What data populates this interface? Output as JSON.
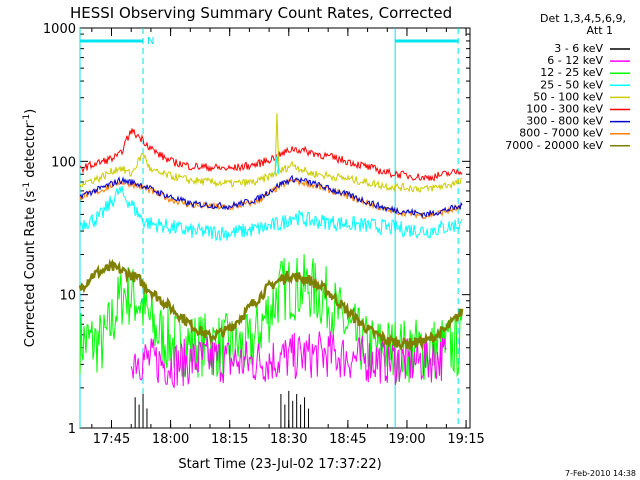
{
  "chart_data": {
    "type": "line",
    "title": "HESSI Observing Summary Count Rates, Corrected",
    "xlabel": "Start Time (23-Jul-02 17:37:22)",
    "ylabel_main": "Corrected Count Rate (s",
    "ylabel_sup1": "-1",
    "ylabel_mid": " detector",
    "ylabel_sup2": "-1",
    "ylabel_end": ")",
    "yscale": "log",
    "ylim": [
      1,
      1000
    ],
    "xlim_minutes": [
      17.62,
      19.27
    ],
    "x_ticks": [
      "17:45",
      "18:00",
      "18:15",
      "18:30",
      "18:45",
      "19:00",
      "19:15"
    ],
    "y_ticks": [
      "1",
      "10",
      "100",
      "1000"
    ],
    "legend_header": [
      "Det 1,3,4,5,6,9,",
      "Att 1"
    ],
    "footer_date": "7-Feb-2010 14:38",
    "marker_N": "N",
    "night_bars": [
      {
        "start": "17:37",
        "end": "17:53"
      },
      {
        "start": "18:57",
        "end": "19:13"
      }
    ],
    "vertical_markers": [
      {
        "time": "17:37",
        "style": "solid"
      },
      {
        "time": "17:53",
        "style": "dashed"
      },
      {
        "time": "18:57",
        "style": "solid"
      },
      {
        "time": "19:13",
        "style": "dashed"
      }
    ],
    "series": [
      {
        "name": "3 - 6 keV",
        "color": "#000000",
        "x": [
          "17:51",
          "17:52",
          "17:53",
          "17:54",
          "18:28",
          "18:29",
          "18:30",
          "18:31",
          "18:32",
          "18:33",
          "18:34",
          "18:35"
        ],
        "y": [
          1.7,
          1.5,
          1.8,
          1.4,
          1.8,
          1.5,
          1.9,
          1.6,
          1.8,
          1.5,
          1.7,
          1.4
        ]
      },
      {
        "name": "6 - 12 keV",
        "color": "#ff00ff",
        "x": [
          "17:50",
          "17:55",
          "18:00",
          "18:10",
          "18:20",
          "18:30",
          "18:40",
          "18:48",
          "18:55",
          "19:00",
          "19:10"
        ],
        "y": [
          3.5,
          3.2,
          3.0,
          3.3,
          3.1,
          3.4,
          3.6,
          3.3,
          3.2,
          3.1,
          3.4
        ]
      },
      {
        "name": "12 - 25 keV",
        "color": "#00ff00",
        "x": [
          "17:37",
          "17:43",
          "17:48",
          "17:52",
          "17:56",
          "18:00",
          "18:10",
          "18:20",
          "18:28",
          "18:35",
          "18:40",
          "18:45",
          "18:50",
          "19:00",
          "19:10",
          "19:14"
        ],
        "y": [
          4.5,
          4.3,
          10.5,
          9.0,
          5.5,
          4.3,
          4.2,
          4.0,
          11.0,
          11.5,
          9.0,
          5.5,
          4.0,
          3.8,
          4.0,
          4.2
        ]
      },
      {
        "name": "25 - 50 keV",
        "color": "#00ffff",
        "x": [
          "17:37",
          "17:42",
          "17:47",
          "17:50",
          "17:53",
          "17:55",
          "17:58",
          "18:05",
          "18:15",
          "18:22",
          "18:28",
          "18:31",
          "18:35",
          "18:45",
          "18:55",
          "19:05",
          "19:14"
        ],
        "y": [
          34,
          38,
          60,
          48,
          36,
          34,
          33,
          30,
          29,
          31,
          34,
          39,
          36,
          34,
          32,
          30,
          34
        ]
      },
      {
        "name": "50 - 100 keV",
        "color": "#cccc00",
        "x": [
          "17:37",
          "17:42",
          "17:47",
          "17:50",
          "17:53",
          "17:55",
          "17:58",
          "18:05",
          "18:15",
          "18:22",
          "18:28",
          "18:31",
          "18:35",
          "18:45",
          "18:55",
          "19:05",
          "19:14"
        ],
        "y": [
          68,
          75,
          90,
          80,
          115,
          85,
          80,
          72,
          68,
          70,
          85,
          95,
          82,
          74,
          65,
          62,
          70
        ]
      },
      {
        "name": "100 - 300 keV",
        "color": "#ff0000",
        "x": [
          "17:37",
          "17:42",
          "17:47",
          "17:50",
          "17:53",
          "17:56",
          "18:00",
          "18:05",
          "18:15",
          "18:22",
          "18:28",
          "18:31",
          "18:35",
          "18:45",
          "18:55",
          "19:05",
          "19:14"
        ],
        "y": [
          88,
          98,
          110,
          170,
          145,
          118,
          100,
          92,
          88,
          95,
          112,
          125,
          118,
          100,
          82,
          75,
          85
        ]
      },
      {
        "name": "300 - 800 keV",
        "color": "#0000cc",
        "x": [
          "17:37",
          "17:42",
          "17:47",
          "17:50",
          "17:53",
          "17:56",
          "18:00",
          "18:05",
          "18:15",
          "18:22",
          "18:28",
          "18:31",
          "18:35",
          "18:45",
          "18:55",
          "19:05",
          "19:14"
        ],
        "y": [
          55,
          62,
          72,
          70,
          66,
          60,
          54,
          48,
          46,
          52,
          68,
          74,
          70,
          56,
          44,
          40,
          46
        ]
      },
      {
        "name": "800 - 7000 keV",
        "color": "#ff7f00",
        "x": [
          "17:37",
          "17:42",
          "17:47",
          "17:50",
          "17:53",
          "17:56",
          "18:00",
          "18:05",
          "18:15",
          "18:22",
          "18:28",
          "18:31",
          "18:35",
          "18:45",
          "18:55",
          "19:05",
          "19:14"
        ],
        "y": [
          54,
          60,
          70,
          68,
          64,
          58,
          52,
          47,
          45,
          50,
          66,
          72,
          68,
          55,
          43,
          39,
          45
        ]
      },
      {
        "name": "7000 - 20000 keV",
        "color": "#808000",
        "x": [
          "17:37",
          "17:40",
          "17:45",
          "17:48",
          "17:52",
          "17:56",
          "18:00",
          "18:05",
          "18:10",
          "18:15",
          "18:20",
          "18:25",
          "18:30",
          "18:35",
          "18:40",
          "18:45",
          "18:50",
          "18:55",
          "19:00",
          "19:05",
          "19:10",
          "19:14"
        ],
        "y": [
          11,
          14,
          16,
          15,
          13,
          10,
          8.0,
          6.0,
          4.8,
          5.5,
          8.0,
          11.5,
          14,
          13,
          10.5,
          7.5,
          5.5,
          4.5,
          4.3,
          4.5,
          5.5,
          7.5
        ]
      }
    ],
    "spikes": [
      {
        "series": "50 - 100 keV",
        "time": "18:27",
        "value": 230
      },
      {
        "series": "25 - 50 keV",
        "time": "18:27",
        "value": 110
      }
    ]
  }
}
